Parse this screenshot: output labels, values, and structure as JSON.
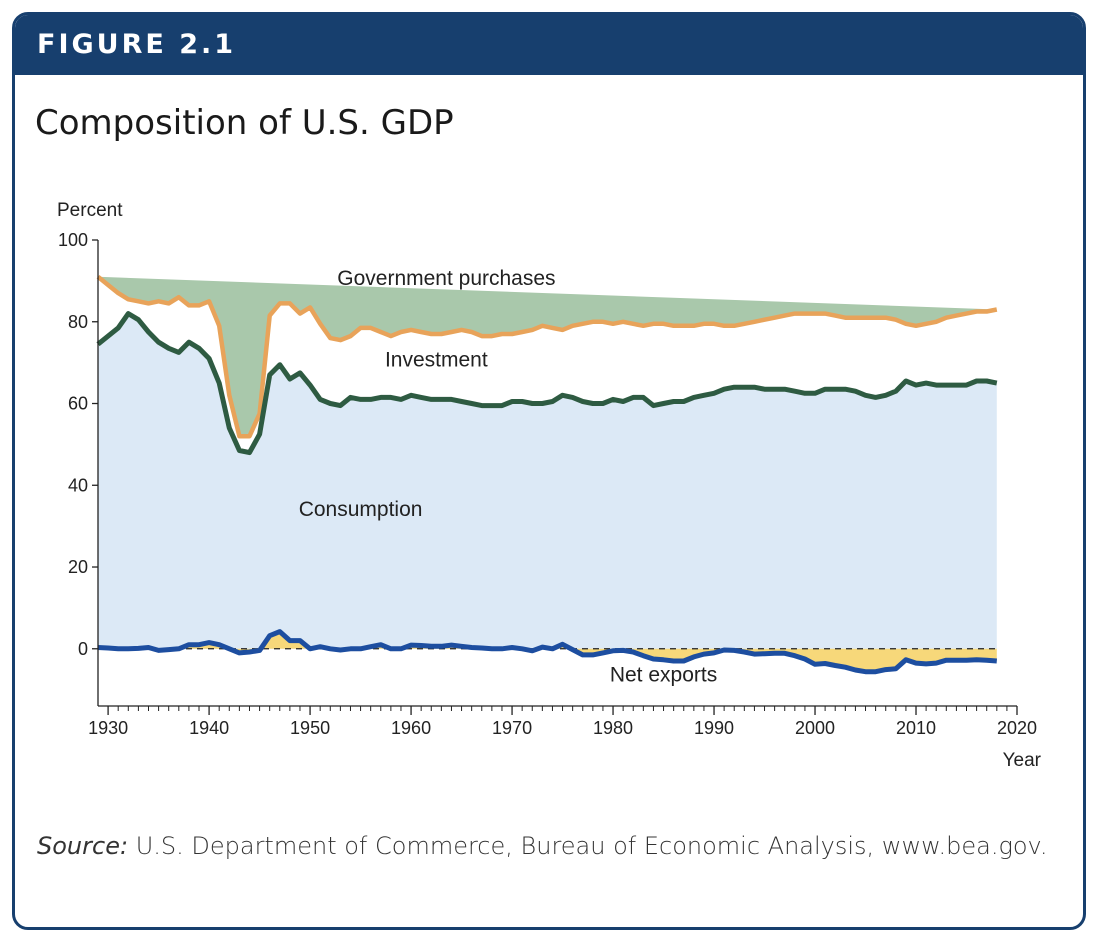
{
  "header": {
    "figure_label": "FIGURE 2.1"
  },
  "title": "Composition of U.S. GDP",
  "source": {
    "label": "Source:",
    "text": "U.S. Department of Commerce, Bureau of Economic Analysis, www.bea.gov."
  },
  "colors": {
    "banner": "#173f6e",
    "consumption_fill": "#dce9f6",
    "investment_fill": "#a9c8ab",
    "government_fill": "#f7e3cb",
    "net_exports_fill": "#f7d87a",
    "consumption_line": "#2e5b42",
    "investment_line": "#e8a35a",
    "net_exports_line": "#1d4ea0"
  },
  "chart_data": {
    "type": "area",
    "ylabel": "Percent",
    "xlabel": "Year",
    "xlim": [
      1929,
      2020
    ],
    "ylim": [
      -14,
      100
    ],
    "x_ticks": [
      1930,
      1940,
      1950,
      1960,
      1970,
      1980,
      1990,
      2000,
      2010,
      2020
    ],
    "y_ticks": [
      0,
      20,
      40,
      60,
      80,
      100
    ],
    "grid": false,
    "stacked": true,
    "series_labels": {
      "government": "Government purchases",
      "investment": "Investment",
      "consumption": "Consumption",
      "net_exports": "Net exports"
    },
    "x": [
      1929,
      1930,
      1931,
      1932,
      1933,
      1934,
      1935,
      1936,
      1937,
      1938,
      1939,
      1940,
      1941,
      1942,
      1943,
      1944,
      1945,
      1946,
      1947,
      1948,
      1949,
      1950,
      1951,
      1952,
      1953,
      1954,
      1955,
      1956,
      1957,
      1958,
      1959,
      1960,
      1961,
      1962,
      1963,
      1964,
      1965,
      1966,
      1967,
      1968,
      1969,
      1970,
      1971,
      1972,
      1973,
      1974,
      1975,
      1976,
      1977,
      1978,
      1979,
      1980,
      1981,
      1982,
      1983,
      1984,
      1985,
      1986,
      1987,
      1988,
      1989,
      1990,
      1991,
      1992,
      1993,
      1994,
      1995,
      1996,
      1997,
      1998,
      1999,
      2000,
      2001,
      2002,
      2003,
      2004,
      2005,
      2006,
      2007,
      2008,
      2009,
      2010,
      2011,
      2012,
      2013,
      2014,
      2015,
      2016,
      2017,
      2018
    ],
    "consumption": [
      74.5,
      76.5,
      78.5,
      82,
      80.5,
      77.5,
      75,
      73.5,
      72.5,
      75,
      73.5,
      71,
      65,
      54,
      48.5,
      48,
      52.5,
      67,
      69.5,
      66,
      67.5,
      64.5,
      61,
      60,
      59.5,
      61.5,
      61,
      61,
      61.5,
      61.5,
      61,
      62,
      61.5,
      61,
      61,
      61,
      60.5,
      60,
      59.5,
      59.5,
      59.5,
      60.5,
      60.5,
      60,
      60,
      60.5,
      62,
      61.5,
      60.5,
      60,
      60,
      61,
      60.5,
      61.5,
      61.5,
      59.5,
      60,
      60.5,
      60.5,
      61.5,
      62,
      62.5,
      63.5,
      64,
      64,
      64,
      63.5,
      63.5,
      63.5,
      63,
      62.5,
      62.5,
      63.5,
      63.5,
      63.5,
      63,
      62,
      61.5,
      62,
      63,
      65.5,
      64.5,
      65,
      64.5,
      64.5,
      64.5,
      64.5,
      65.5,
      65.5,
      65
    ],
    "investment_top": [
      91,
      89,
      87,
      85.5,
      85,
      84.5,
      85,
      84.5,
      86,
      84,
      84,
      85,
      79,
      62,
      52,
      52,
      57.5,
      81.5,
      84.5,
      84.5,
      82,
      83.5,
      79.5,
      76,
      75.5,
      76.5,
      78.5,
      78.5,
      77.5,
      76.5,
      77.5,
      78,
      77.5,
      77,
      77,
      77.5,
      78,
      77.5,
      76.5,
      76.5,
      77,
      77,
      77.5,
      78,
      79,
      78.5,
      78,
      79,
      79.5,
      80,
      80,
      79.5,
      80,
      79.5,
      79,
      79.5,
      79.5,
      79,
      79,
      79,
      79.5,
      79.5,
      79,
      79,
      79.5,
      80,
      80.5,
      81,
      81.5,
      82,
      82,
      82,
      82,
      81.5,
      81,
      81,
      81,
      81,
      81,
      80.5,
      79.5,
      79,
      79.5,
      80,
      81,
      81.5,
      82,
      82.5,
      82.5,
      83,
      83
    ],
    "net_exports": [
      0.3,
      0.2,
      0,
      0,
      0.1,
      0.3,
      -0.4,
      -0.2,
      0,
      1,
      1,
      1.5,
      1,
      0,
      -1,
      -0.8,
      -0.4,
      3.2,
      4.2,
      2,
      2,
      0,
      0.5,
      0,
      -0.3,
      0,
      0,
      0.5,
      1,
      0,
      0,
      0.9,
      0.8,
      0.6,
      0.6,
      0.9,
      0.6,
      0.3,
      0.2,
      0,
      0,
      0.3,
      0,
      -0.5,
      0.4,
      0,
      1.1,
      -0.2,
      -1.5,
      -1.5,
      -1,
      -0.5,
      -0.4,
      -0.8,
      -1.7,
      -2.5,
      -2.7,
      -3,
      -3,
      -2,
      -1.3,
      -1,
      -0.3,
      -0.4,
      -0.8,
      -1.3,
      -1.2,
      -1.1,
      -1.1,
      -1.7,
      -2.5,
      -3.8,
      -3.6,
      -4.1,
      -4.5,
      -5.2,
      -5.6,
      -5.6,
      -5.1,
      -4.9,
      -2.7,
      -3.5,
      -3.7,
      -3.5,
      -2.8,
      -2.8,
      -2.8,
      -2.7,
      -2.8,
      -3
    ]
  }
}
